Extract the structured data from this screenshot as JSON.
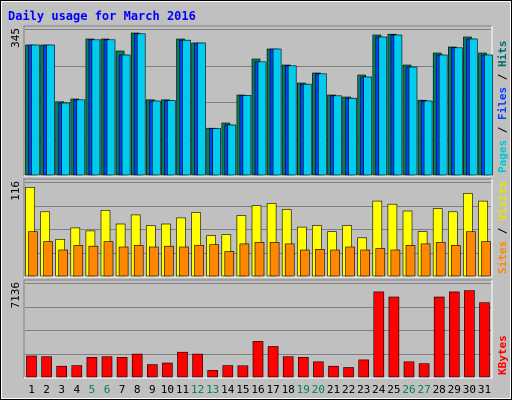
{
  "chart_data": {
    "type": "bar",
    "title": "Daily usage for March 2016",
    "categories": [
      "1",
      "2",
      "3",
      "4",
      "5",
      "6",
      "7",
      "8",
      "9",
      "10",
      "11",
      "12",
      "13",
      "14",
      "15",
      "16",
      "17",
      "18",
      "19",
      "20",
      "21",
      "22",
      "23",
      "24",
      "25",
      "26",
      "27",
      "28",
      "29",
      "30",
      "31"
    ],
    "weekend_categories": [
      "5",
      "6",
      "12",
      "13",
      "19",
      "20",
      "26",
      "27"
    ],
    "panels": [
      {
        "id": "hits",
        "ymax_label": "345",
        "ylim": [
          0,
          365
        ],
        "right_label_parts": [
          {
            "text": "Pages",
            "color": "#00c8d0"
          },
          {
            "text": " / ",
            "color": "#000000"
          },
          {
            "text": "Files",
            "color": "#0040ff"
          },
          {
            "text": " / ",
            "color": "#000000"
          },
          {
            "text": "Hits",
            "color": "#006e6e"
          }
        ],
        "series": [
          {
            "name": "Hits",
            "color": "#00805c",
            "values": [
              325,
              325,
              183,
              190,
              340,
              340,
              310,
              355,
              188,
              188,
              340,
              330,
              117,
              130,
              200,
              290,
              315,
              275,
              230,
              255,
              200,
              195,
              250,
              350,
              352,
              275,
              187,
              305,
              320,
              345,
              305
            ]
          },
          {
            "name": "Files",
            "color": "#0044ff",
            "values": [
              325,
              325,
              180,
              188,
              338,
              338,
              300,
              353,
              185,
              186,
              337,
              330,
              116,
              125,
              199,
              283,
              315,
              273,
              227,
              253,
              198,
              192,
              245,
              345,
              350,
              270,
              185,
              300,
              318,
              340,
              300
            ]
          },
          {
            "name": "Pages",
            "color": "#00ccee",
            "values": [
              325,
              325,
              180,
              188,
              338,
              338,
              300,
              353,
              185,
              186,
              337,
              330,
              116,
              125,
              199,
              283,
              315,
              273,
              227,
              253,
              198,
              192,
              245,
              345,
              350,
              270,
              185,
              300,
              318,
              340,
              300
            ]
          }
        ]
      },
      {
        "id": "visits",
        "ymax_label": "116",
        "ylim": [
          0,
          123
        ],
        "right_label_parts": [
          {
            "text": "Sites",
            "color": "#ff8800"
          },
          {
            "text": " / ",
            "color": "#000000"
          },
          {
            "text": "Visits",
            "color": "#e6e600"
          }
        ],
        "series": [
          {
            "name": "Visits",
            "color": "#ffff00",
            "values": [
              116,
              84,
              48,
              63,
              59,
              86,
              68,
              80,
              66,
              68,
              76,
              83,
              53,
              54,
              79,
              92,
              95,
              87,
              64,
              66,
              58,
              66,
              50,
              98,
              94,
              85,
              58,
              88,
              84,
              108,
              98
            ]
          },
          {
            "name": "Sites",
            "color": "#ff8800",
            "values": [
              58,
              45,
              34,
              40,
              39,
              45,
              38,
              40,
              38,
              39,
              38,
              40,
              41,
              32,
              42,
              44,
              44,
              42,
              34,
              35,
              34,
              38,
              34,
              36,
              34,
              40,
              42,
              44,
              40,
              58,
              45
            ]
          }
        ]
      },
      {
        "id": "kbytes",
        "ymax_label": "7136",
        "ylim": [
          0,
          7400
        ],
        "right_label_parts": [
          {
            "text": "KBytes",
            "color": "#ff0000"
          }
        ],
        "series": [
          {
            "name": "KBytes",
            "color": "#ff0000",
            "values": [
              1650,
              1600,
              850,
              900,
              1550,
              1600,
              1550,
              1800,
              980,
              1100,
              1950,
              1800,
              520,
              900,
              880,
              2800,
              2400,
              1600,
              1550,
              1200,
              850,
              750,
              1350,
              6700,
              6300,
              1200,
              1050,
              6300,
              6700,
              6800,
              5850
            ]
          }
        ]
      }
    ]
  },
  "colors": {
    "background": "#c0c0c0",
    "title": "#0000ff",
    "grid": "#808080",
    "weekday_label": "#000000",
    "weekend_label": "#00805c"
  }
}
